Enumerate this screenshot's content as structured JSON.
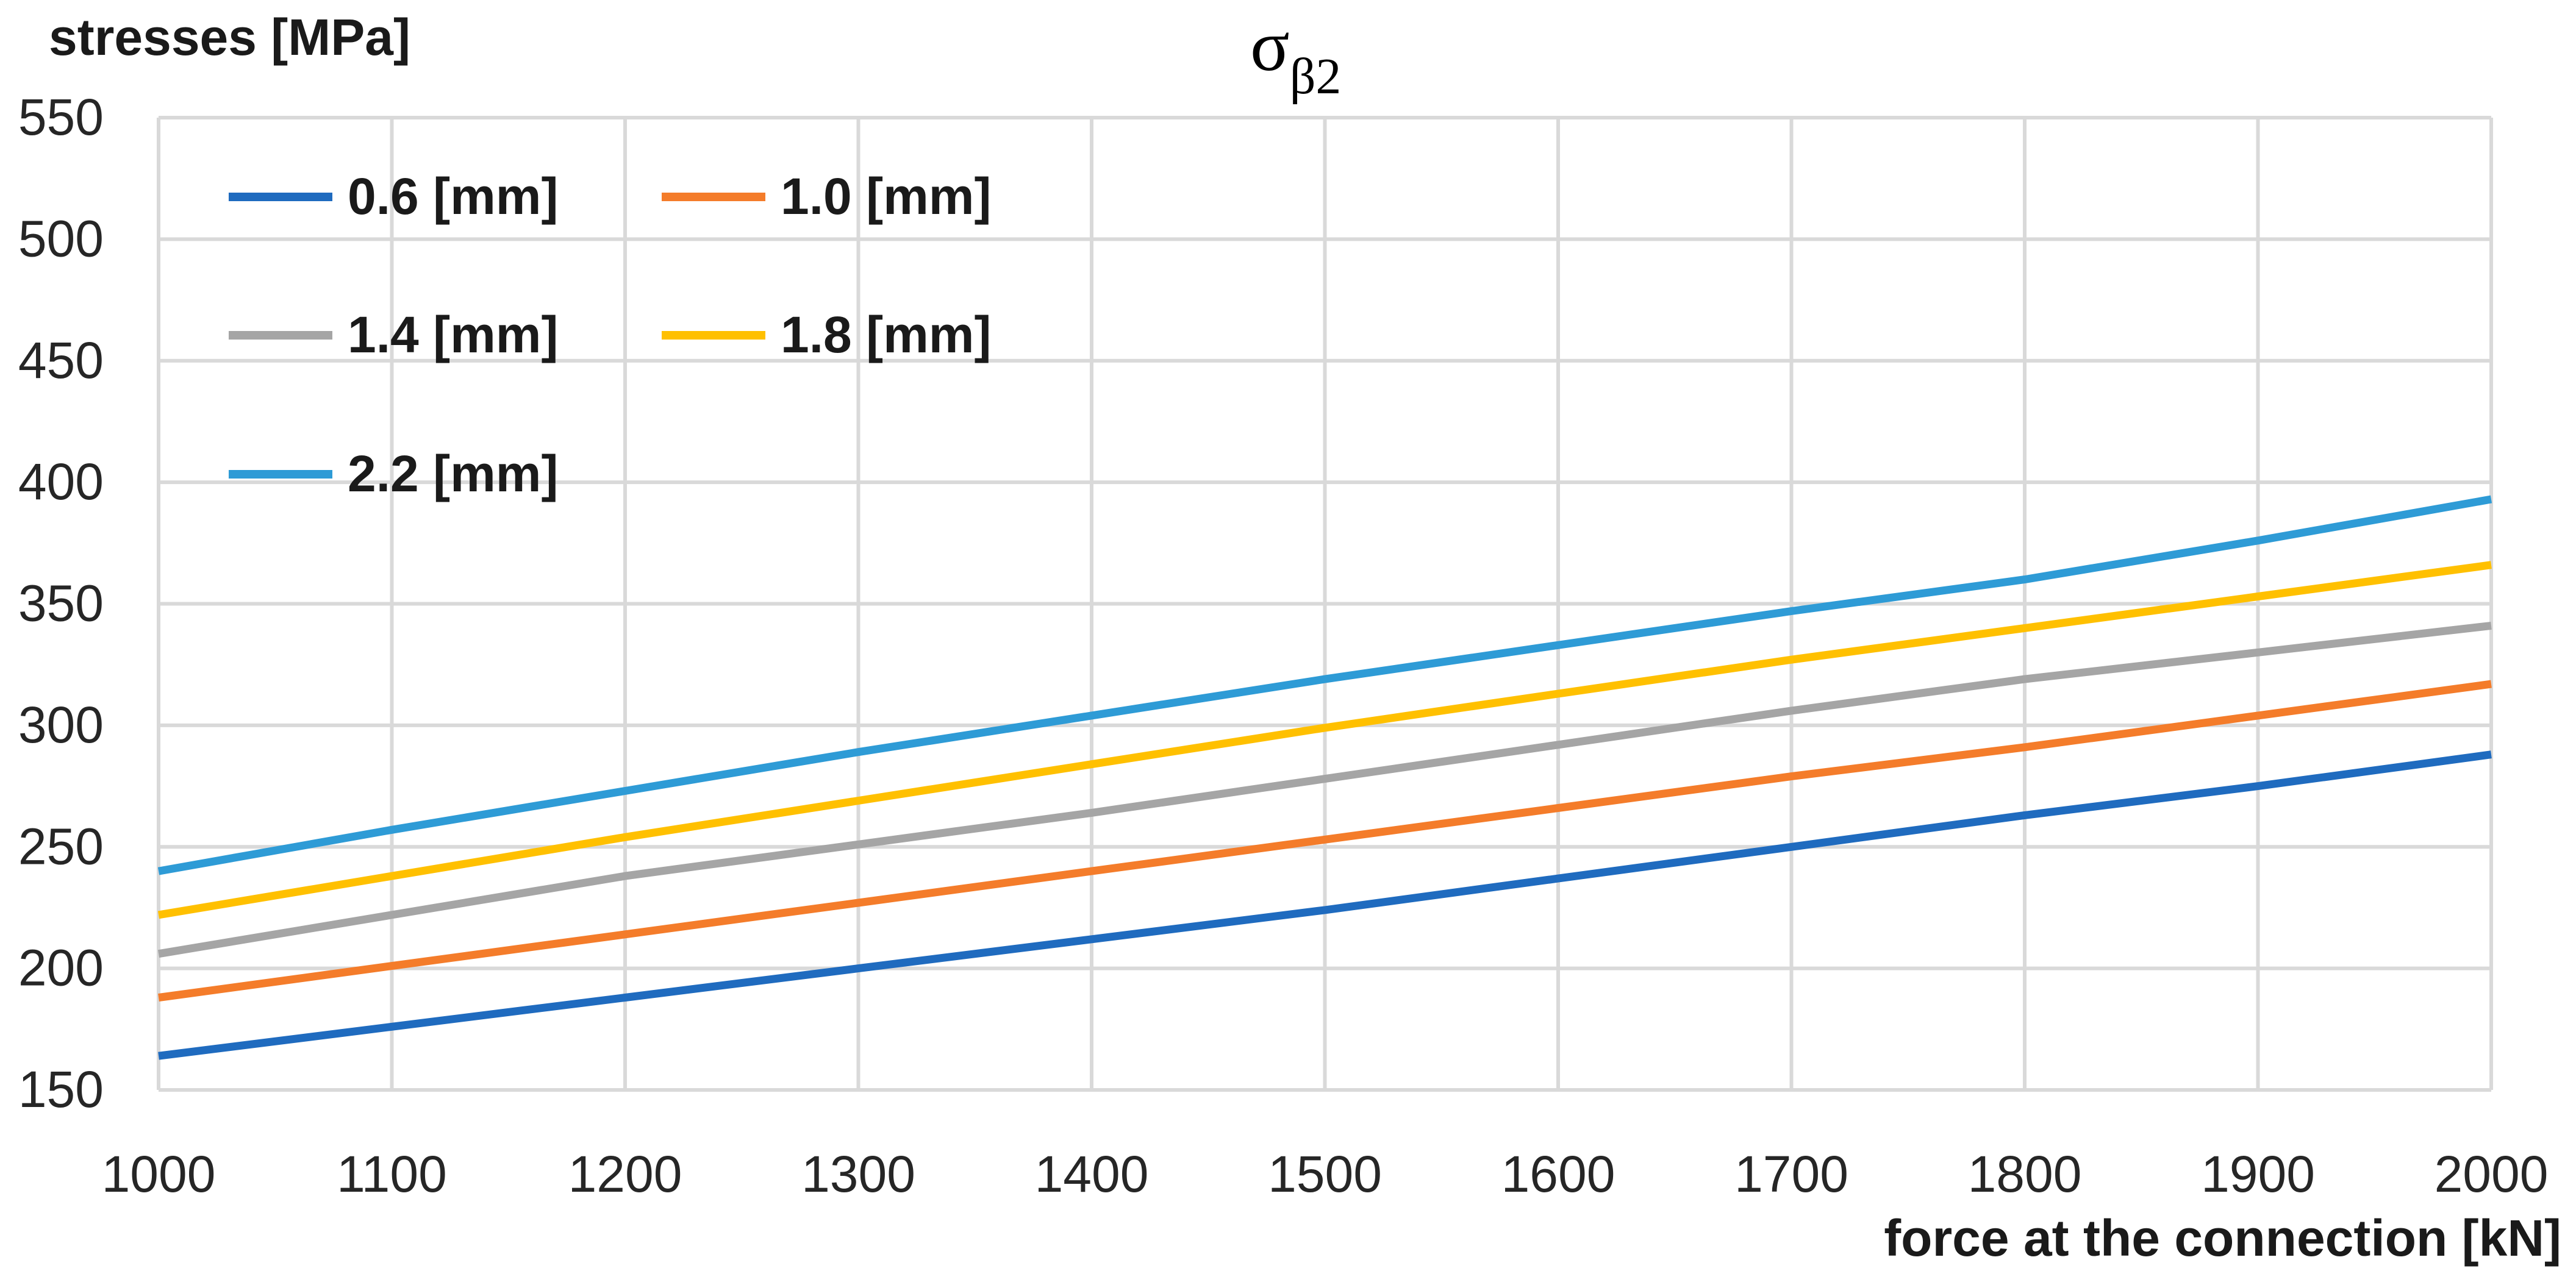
{
  "chart_data": {
    "type": "line",
    "title": "σ",
    "title_subscript": "β2",
    "ylabel": "stresses [MPa]",
    "xlabel": "force at the connection [kN]",
    "x": [
      1000,
      1100,
      1200,
      1300,
      1400,
      1500,
      1600,
      1700,
      1800,
      1900,
      2000
    ],
    "xlim": [
      1000,
      2000
    ],
    "ylim": [
      150,
      550
    ],
    "xticks": [
      "1000",
      "1100",
      "1200",
      "1300",
      "1400",
      "1500",
      "1600",
      "1700",
      "1800",
      "1900",
      "2000"
    ],
    "yticks": [
      "150",
      "200",
      "250",
      "300",
      "350",
      "400",
      "450",
      "500",
      "550"
    ],
    "grid": true,
    "legend_position": "top-left",
    "series": [
      {
        "name": "0.6 [mm]",
        "color": "#1f6bbf",
        "values": [
          164,
          176,
          188,
          200,
          212,
          224,
          237,
          250,
          263,
          275,
          288
        ]
      },
      {
        "name": "1.0 [mm]",
        "color": "#f47c2a",
        "values": [
          188,
          201,
          214,
          227,
          240,
          253,
          266,
          279,
          291,
          304,
          317
        ]
      },
      {
        "name": "1.4 [mm]",
        "color": "#a5a5a5",
        "values": [
          206,
          222,
          238,
          251,
          264,
          278,
          292,
          306,
          319,
          330,
          341
        ]
      },
      {
        "name": "1.8 [mm]",
        "color": "#ffc000",
        "values": [
          222,
          238,
          254,
          269,
          284,
          299,
          313,
          327,
          340,
          353,
          366
        ]
      },
      {
        "name": "2.2 [mm]",
        "color": "#2e9bd6",
        "values": [
          240,
          257,
          273,
          289,
          304,
          319,
          333,
          347,
          360,
          376,
          393
        ]
      }
    ]
  }
}
